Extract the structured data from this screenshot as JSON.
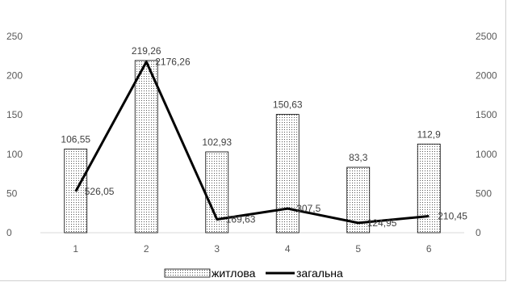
{
  "chart_data": {
    "type": "bar",
    "categories": [
      "1",
      "2",
      "3",
      "4",
      "5",
      "6"
    ],
    "series": [
      {
        "name": "житлова",
        "type": "bar",
        "axis": "left",
        "values": [
          106.55,
          219.26,
          102.93,
          150.63,
          83.3,
          112.9
        ],
        "labels": [
          "106,55",
          "219,26",
          "102,93",
          "150,63",
          "83,3",
          "112,9"
        ],
        "fill": "dotted"
      },
      {
        "name": "загальна",
        "type": "line",
        "axis": "right",
        "values": [
          526.05,
          2176.26,
          169.63,
          307.5,
          124.95,
          210.45
        ],
        "labels": [
          "526,05",
          "2176,26",
          "169,63",
          "307,5",
          "124,95",
          "210,45"
        ],
        "color": "#000000"
      }
    ],
    "y_left": {
      "ylim": [
        0,
        250
      ],
      "ticks": [
        "0",
        "50",
        "100",
        "150",
        "200",
        "250"
      ]
    },
    "y_right": {
      "ylim": [
        0,
        2500
      ],
      "ticks": [
        "0",
        "500",
        "1000",
        "1500",
        "2000",
        "2500"
      ]
    },
    "grid": false,
    "legend": "bottom"
  }
}
